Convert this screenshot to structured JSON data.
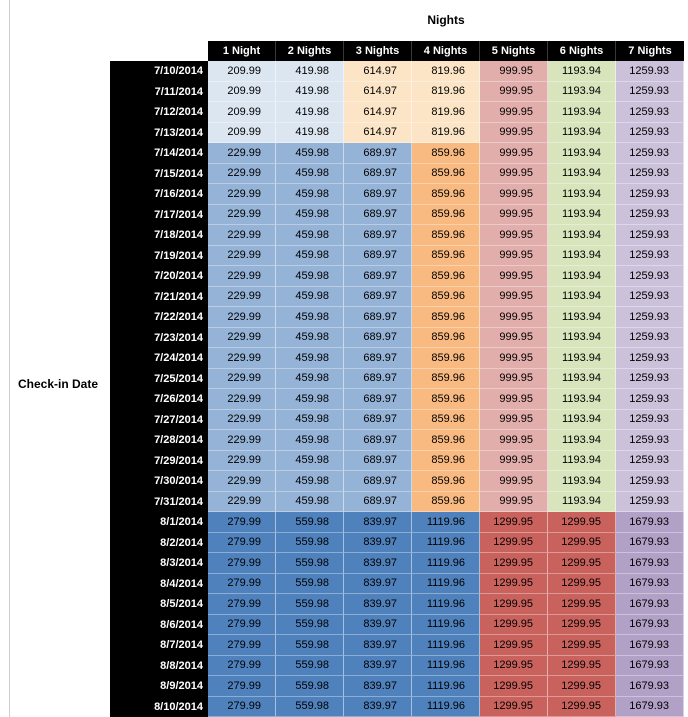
{
  "chart_data": {
    "type": "table",
    "title": "Nights",
    "row_axis_label": "Check-in Date",
    "columns": [
      "1 Night",
      "2 Nights",
      "3 Nights",
      "4 Nights",
      "5 Nights",
      "6 Nights",
      "7 Nights"
    ],
    "header_colors": {
      "background": "#000000",
      "text": "#ffffff"
    },
    "band_colors": {
      "early_july": [
        "#dce6f1",
        "#dce6f1",
        "#fce5c6",
        "#fce5c6",
        "#e2aeac",
        "#d7e4bc",
        "#ccc1da"
      ],
      "mid_july": [
        "#95b3d7",
        "#95b3d7",
        "#95b3d7",
        "#f9ba81",
        "#e2aeac",
        "#d7e4bc",
        "#ccc1da"
      ],
      "august": [
        "#4f81bd",
        "#4f81bd",
        "#4f81bd",
        "#4f81bd",
        "#c9625d",
        "#c9625d",
        "#b2a1c7"
      ]
    },
    "rows": [
      {
        "date": "7/10/2014",
        "band": "early_july",
        "values": [
          "209.99",
          "419.98",
          "614.97",
          "819.96",
          "999.95",
          "1193.94",
          "1259.93"
        ]
      },
      {
        "date": "7/11/2014",
        "band": "early_july",
        "values": [
          "209.99",
          "419.98",
          "614.97",
          "819.96",
          "999.95",
          "1193.94",
          "1259.93"
        ]
      },
      {
        "date": "7/12/2014",
        "band": "early_july",
        "values": [
          "209.99",
          "419.98",
          "614.97",
          "819.96",
          "999.95",
          "1193.94",
          "1259.93"
        ]
      },
      {
        "date": "7/13/2014",
        "band": "early_july",
        "values": [
          "209.99",
          "419.98",
          "614.97",
          "819.96",
          "999.95",
          "1193.94",
          "1259.93"
        ]
      },
      {
        "date": "7/14/2014",
        "band": "mid_july",
        "values": [
          "229.99",
          "459.98",
          "689.97",
          "859.96",
          "999.95",
          "1193.94",
          "1259.93"
        ]
      },
      {
        "date": "7/15/2014",
        "band": "mid_july",
        "values": [
          "229.99",
          "459.98",
          "689.97",
          "859.96",
          "999.95",
          "1193.94",
          "1259.93"
        ]
      },
      {
        "date": "7/16/2014",
        "band": "mid_july",
        "values": [
          "229.99",
          "459.98",
          "689.97",
          "859.96",
          "999.95",
          "1193.94",
          "1259.93"
        ]
      },
      {
        "date": "7/17/2014",
        "band": "mid_july",
        "values": [
          "229.99",
          "459.98",
          "689.97",
          "859.96",
          "999.95",
          "1193.94",
          "1259.93"
        ]
      },
      {
        "date": "7/18/2014",
        "band": "mid_july",
        "values": [
          "229.99",
          "459.98",
          "689.97",
          "859.96",
          "999.95",
          "1193.94",
          "1259.93"
        ]
      },
      {
        "date": "7/19/2014",
        "band": "mid_july",
        "values": [
          "229.99",
          "459.98",
          "689.97",
          "859.96",
          "999.95",
          "1193.94",
          "1259.93"
        ]
      },
      {
        "date": "7/20/2014",
        "band": "mid_july",
        "values": [
          "229.99",
          "459.98",
          "689.97",
          "859.96",
          "999.95",
          "1193.94",
          "1259.93"
        ]
      },
      {
        "date": "7/21/2014",
        "band": "mid_july",
        "values": [
          "229.99",
          "459.98",
          "689.97",
          "859.96",
          "999.95",
          "1193.94",
          "1259.93"
        ]
      },
      {
        "date": "7/22/2014",
        "band": "mid_july",
        "values": [
          "229.99",
          "459.98",
          "689.97",
          "859.96",
          "999.95",
          "1193.94",
          "1259.93"
        ]
      },
      {
        "date": "7/23/2014",
        "band": "mid_july",
        "values": [
          "229.99",
          "459.98",
          "689.97",
          "859.96",
          "999.95",
          "1193.94",
          "1259.93"
        ]
      },
      {
        "date": "7/24/2014",
        "band": "mid_july",
        "values": [
          "229.99",
          "459.98",
          "689.97",
          "859.96",
          "999.95",
          "1193.94",
          "1259.93"
        ]
      },
      {
        "date": "7/25/2014",
        "band": "mid_july",
        "values": [
          "229.99",
          "459.98",
          "689.97",
          "859.96",
          "999.95",
          "1193.94",
          "1259.93"
        ]
      },
      {
        "date": "7/26/2014",
        "band": "mid_july",
        "values": [
          "229.99",
          "459.98",
          "689.97",
          "859.96",
          "999.95",
          "1193.94",
          "1259.93"
        ]
      },
      {
        "date": "7/27/2014",
        "band": "mid_july",
        "values": [
          "229.99",
          "459.98",
          "689.97",
          "859.96",
          "999.95",
          "1193.94",
          "1259.93"
        ]
      },
      {
        "date": "7/28/2014",
        "band": "mid_july",
        "values": [
          "229.99",
          "459.98",
          "689.97",
          "859.96",
          "999.95",
          "1193.94",
          "1259.93"
        ]
      },
      {
        "date": "7/29/2014",
        "band": "mid_july",
        "values": [
          "229.99",
          "459.98",
          "689.97",
          "859.96",
          "999.95",
          "1193.94",
          "1259.93"
        ]
      },
      {
        "date": "7/30/2014",
        "band": "mid_july",
        "values": [
          "229.99",
          "459.98",
          "689.97",
          "859.96",
          "999.95",
          "1193.94",
          "1259.93"
        ]
      },
      {
        "date": "7/31/2014",
        "band": "mid_july",
        "values": [
          "229.99",
          "459.98",
          "689.97",
          "859.96",
          "999.95",
          "1193.94",
          "1259.93"
        ]
      },
      {
        "date": "8/1/2014",
        "band": "august",
        "values": [
          "279.99",
          "559.98",
          "839.97",
          "1119.96",
          "1299.95",
          "1299.95",
          "1679.93"
        ]
      },
      {
        "date": "8/2/2014",
        "band": "august",
        "values": [
          "279.99",
          "559.98",
          "839.97",
          "1119.96",
          "1299.95",
          "1299.95",
          "1679.93"
        ]
      },
      {
        "date": "8/3/2014",
        "band": "august",
        "values": [
          "279.99",
          "559.98",
          "839.97",
          "1119.96",
          "1299.95",
          "1299.95",
          "1679.93"
        ]
      },
      {
        "date": "8/4/2014",
        "band": "august",
        "values": [
          "279.99",
          "559.98",
          "839.97",
          "1119.96",
          "1299.95",
          "1299.95",
          "1679.93"
        ]
      },
      {
        "date": "8/5/2014",
        "band": "august",
        "values": [
          "279.99",
          "559.98",
          "839.97",
          "1119.96",
          "1299.95",
          "1299.95",
          "1679.93"
        ]
      },
      {
        "date": "8/6/2014",
        "band": "august",
        "values": [
          "279.99",
          "559.98",
          "839.97",
          "1119.96",
          "1299.95",
          "1299.95",
          "1679.93"
        ]
      },
      {
        "date": "8/7/2014",
        "band": "august",
        "values": [
          "279.99",
          "559.98",
          "839.97",
          "1119.96",
          "1299.95",
          "1299.95",
          "1679.93"
        ]
      },
      {
        "date": "8/8/2014",
        "band": "august",
        "values": [
          "279.99",
          "559.98",
          "839.97",
          "1119.96",
          "1299.95",
          "1299.95",
          "1679.93"
        ]
      },
      {
        "date": "8/9/2014",
        "band": "august",
        "values": [
          "279.99",
          "559.98",
          "839.97",
          "1119.96",
          "1299.95",
          "1299.95",
          "1679.93"
        ]
      },
      {
        "date": "8/10/2014",
        "band": "august",
        "values": [
          "279.99",
          "559.98",
          "839.97",
          "1119.96",
          "1299.95",
          "1299.95",
          "1679.93"
        ]
      }
    ]
  }
}
